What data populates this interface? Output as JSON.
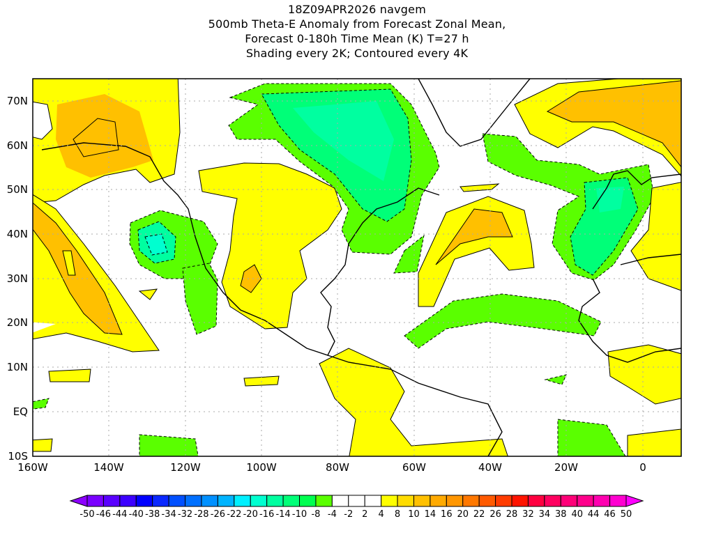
{
  "title": {
    "line1": "18Z09APR2026 navgem",
    "line2": "500mb Theta-E Anomaly from Forecast Zonal Mean,",
    "line3": "Forecast 0-180h Time Mean (K) T=27 h",
    "line4": "Shading every 2K; Contoured every 4K"
  },
  "map": {
    "lat_labels": [
      "70N",
      "60N",
      "50N",
      "40N",
      "30N",
      "20N",
      "10N",
      "EQ",
      "10S"
    ],
    "lon_labels": [
      "160W",
      "140W",
      "120W",
      "100W",
      "80W",
      "60W",
      "40W",
      "20W",
      "0"
    ]
  },
  "colorbar": {
    "labels": [
      "-50",
      "-46",
      "-44",
      "-40",
      "-38",
      "-34",
      "-32",
      "-28",
      "-26",
      "-22",
      "-20",
      "-16",
      "-14",
      "-10",
      "-8",
      "-4",
      "-2",
      "2",
      "4",
      "8",
      "10",
      "14",
      "16",
      "20",
      "22",
      "26",
      "28",
      "32",
      "34",
      "38",
      "40",
      "44",
      "46",
      "50"
    ],
    "low_arrow_color": "#8c00ff",
    "high_arrow_color": "#ff00ff",
    "colors": [
      "#7a00ff",
      "#5a00ff",
      "#3c00ff",
      "#0000ff",
      "#0a28ff",
      "#0050ff",
      "#0070ff",
      "#0090ff",
      "#00b4ff",
      "#00f0ff",
      "#00ffd0",
      "#00ffa0",
      "#00ff78",
      "#00ff50",
      "#5aff00",
      "#ffffff",
      "#ffffff",
      "#ffffff",
      "#ffff00",
      "#ffdc00",
      "#ffc000",
      "#ffaa00",
      "#ff9600",
      "#ff7800",
      "#ff5a00",
      "#ff3c00",
      "#ff1400",
      "#ff0040",
      "#ff0060",
      "#ff0078",
      "#ff008c",
      "#ff00b0",
      "#ff00d0"
    ]
  }
}
